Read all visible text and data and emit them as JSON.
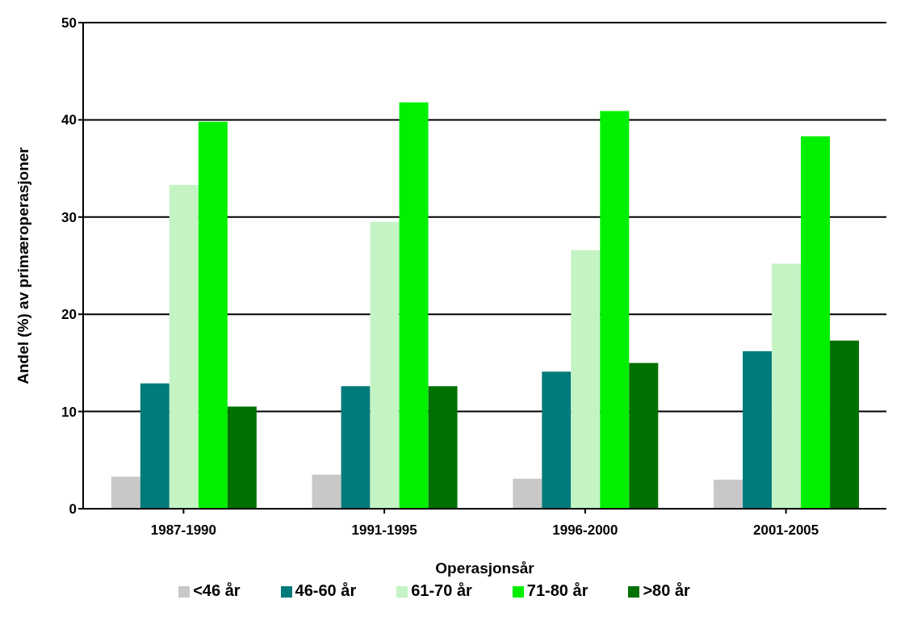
{
  "chart_data": {
    "type": "bar",
    "xlabel": "Operasjonsår",
    "ylabel": "Andel (%) av primæroperasjoner",
    "categories": [
      "1987-1990",
      "1991-1995",
      "1996-2000",
      "2001-2005"
    ],
    "series": [
      {
        "name": "<46 år",
        "color": "#c8c8c8",
        "values": [
          3.3,
          3.5,
          3.1,
          3.0
        ]
      },
      {
        "name": "46-60 år",
        "color": "#007a7a",
        "values": [
          12.9,
          12.6,
          14.1,
          16.2
        ]
      },
      {
        "name": "61-70 år",
        "color": "#c4f4c4",
        "values": [
          33.3,
          29.5,
          26.6,
          25.2
        ]
      },
      {
        "name": "71-80 år",
        "color": "#00f000",
        "values": [
          39.8,
          41.8,
          40.9,
          38.3
        ]
      },
      {
        "name": ">80 år",
        "color": "#007000",
        "values": [
          10.5,
          12.6,
          15.0,
          17.3
        ]
      }
    ],
    "ylim": [
      0,
      50
    ],
    "yticks": [
      0,
      10,
      20,
      30,
      40,
      50
    ],
    "grid": "y",
    "legend": "bottom"
  }
}
